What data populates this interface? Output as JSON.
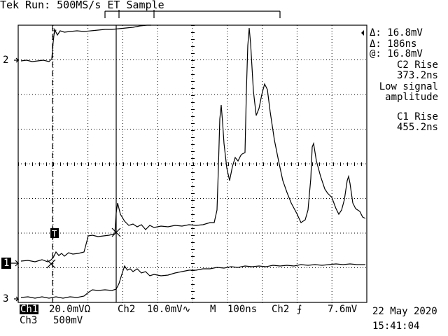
{
  "header": {
    "brand": "Tek",
    "status": "Run: 500MS/s ET Sample"
  },
  "channel_markers": {
    "ch2": "2",
    "ch1": "1",
    "ch3": "3",
    "trigger": "T"
  },
  "readouts": {
    "delta_v": "Δ: 16.8mV",
    "delta_t": "Δ: 186ns",
    "at_v": "@: 16.8mV",
    "meas1_title": "C2 Rise",
    "meas1_value": "373.2ns",
    "meas1_note_1": "Low signal",
    "meas1_note_2": "amplitude",
    "meas2_title": "C1 Rise",
    "meas2_value": "455.2ns"
  },
  "footer": {
    "ch1_label": "Ch1",
    "ch1_scale": "20.0mVΩ",
    "ch2_label": "Ch2",
    "ch2_scale": "10.0mV∿",
    "timebase_label": "M",
    "timebase_value": "100ns",
    "trigger_source": "Ch2",
    "trigger_slope": "⨍",
    "trigger_level": "7.6mV",
    "ch3_label": "Ch3",
    "ch3_scale": "500mV",
    "date": "22 May 2020",
    "time": "15:41:04"
  },
  "colors": {
    "background": "#ffffff",
    "ink": "#000000"
  }
}
